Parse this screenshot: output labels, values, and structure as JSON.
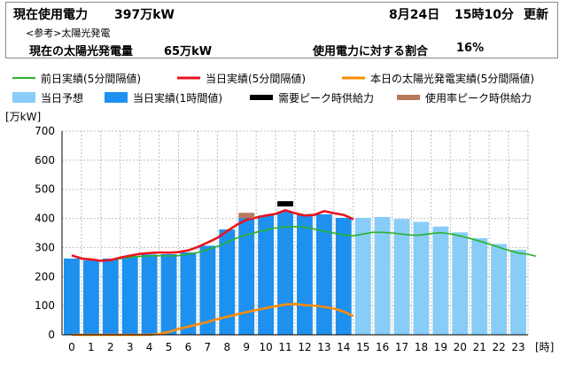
{
  "header": {
    "current_label": "現在使用電力",
    "current_value": "397万kW",
    "date": "8月24日",
    "time": "15時10分",
    "update": "更新",
    "ref_label": "<参考>太陽光発電",
    "solar_label": "現在の太陽光発電量",
    "solar_value": "65万kW",
    "ratio_label": "使用電力に対する割合",
    "ratio_value": "16%"
  },
  "legend": {
    "prev_day": "前日実績(5分間隔値)",
    "today_5min": "当日実績(5分間隔値)",
    "solar_today": "本日の太陽光発電実績(5分間隔値)",
    "forecast": "当日予想",
    "today_hourly": "当日実績(1時間値)",
    "peak_demand": "需要ピーク時供給力",
    "peak_usage": "使用率ピーク時供給力"
  },
  "colors": {
    "bar_actual": "#1e90f0",
    "bar_forecast": "#87cdf7",
    "prev_day": "#2bb22b",
    "today": "#e8141e",
    "solar": "#ff8c00",
    "peak_demand": "#000000",
    "peak_usage": "#b87a5a",
    "grid": "#bdbdbd"
  },
  "chart_data": {
    "type": "bar",
    "ylabel": "[万kW]",
    "xlabel": "[時]",
    "ylim": [
      0,
      700
    ],
    "yticks": [
      0,
      100,
      200,
      300,
      400,
      500,
      600,
      700
    ],
    "categories": [
      "0",
      "1",
      "2",
      "3",
      "4",
      "5",
      "6",
      "7",
      "8",
      "9",
      "10",
      "11",
      "12",
      "13",
      "14",
      "15",
      "16",
      "17",
      "18",
      "19",
      "20",
      "21",
      "22",
      "23"
    ],
    "grid": true,
    "series": [
      {
        "name": "当日実績(1時間値)",
        "kind": "bar",
        "values": [
          262,
          256,
          262,
          271,
          276,
          277,
          283,
          306,
          362,
          403,
          410,
          424,
          414,
          414,
          402,
          null,
          null,
          null,
          null,
          null,
          null,
          null,
          null,
          null
        ]
      },
      {
        "name": "当日予想",
        "kind": "bar",
        "values": [
          null,
          null,
          null,
          null,
          null,
          null,
          null,
          null,
          null,
          null,
          null,
          null,
          null,
          null,
          null,
          402,
          405,
          398,
          388,
          372,
          352,
          332,
          312,
          292
        ]
      },
      {
        "name": "前日実績(5分間隔値)",
        "kind": "line",
        "x": [
          0,
          0.5,
          1,
          1.5,
          2,
          2.5,
          3,
          3.5,
          4,
          4.5,
          5,
          5.5,
          6,
          6.5,
          7,
          7.5,
          8,
          8.5,
          9,
          9.5,
          10,
          10.5,
          11,
          11.5,
          12,
          12.5,
          13,
          13.5,
          14,
          14.5,
          15,
          15.5,
          16,
          16.5,
          17,
          17.5,
          18,
          18.5,
          19,
          19.5,
          20,
          20.5,
          21,
          21.5,
          22,
          22.5,
          23,
          23.5,
          23.9
        ],
        "values": [
          272,
          264,
          259,
          254,
          256,
          262,
          266,
          269,
          271,
          272,
          271,
          272,
          277,
          283,
          293,
          303,
          318,
          333,
          343,
          352,
          360,
          367,
          371,
          372,
          370,
          363,
          356,
          350,
          343,
          340,
          346,
          352,
          352,
          350,
          346,
          342,
          343,
          348,
          351,
          347,
          340,
          331,
          322,
          312,
          301,
          290,
          281,
          277,
          270
        ]
      },
      {
        "name": "当日実績(5分間隔値)",
        "kind": "line",
        "x": [
          0,
          0.5,
          1,
          1.5,
          2,
          2.5,
          3,
          3.5,
          4,
          4.5,
          5,
          5.5,
          6,
          6.5,
          7,
          7.5,
          8,
          8.5,
          9,
          9.5,
          10,
          10.5,
          11,
          11.5,
          12,
          12.5,
          13,
          13.5,
          14,
          14.25,
          14.5
        ],
        "values": [
          273,
          262,
          259,
          254,
          257,
          265,
          272,
          278,
          281,
          283,
          282,
          284,
          290,
          302,
          317,
          333,
          356,
          378,
          395,
          403,
          410,
          415,
          428,
          418,
          410,
          412,
          425,
          418,
          412,
          405,
          397
        ]
      },
      {
        "name": "本日の太陽光発電実績(5分間隔値)",
        "kind": "line",
        "x": [
          0,
          1,
          2,
          3,
          4,
          4.5,
          5,
          5.5,
          6,
          6.5,
          7,
          7.5,
          8,
          8.5,
          9,
          9.5,
          10,
          10.5,
          11,
          11.5,
          12,
          12.5,
          13,
          13.5,
          14,
          14.25,
          14.5
        ],
        "values": [
          0,
          0,
          0,
          0,
          0,
          3,
          10,
          20,
          28,
          36,
          44,
          54,
          62,
          70,
          78,
          85,
          92,
          98,
          104,
          106,
          102,
          100,
          96,
          90,
          80,
          72,
          65
        ]
      },
      {
        "name": "需要ピーク時供給力",
        "kind": "marker",
        "x": 11,
        "value": 450
      },
      {
        "name": "使用率ピーク時供給力",
        "kind": "marker",
        "x": 9,
        "value": 410
      }
    ]
  }
}
